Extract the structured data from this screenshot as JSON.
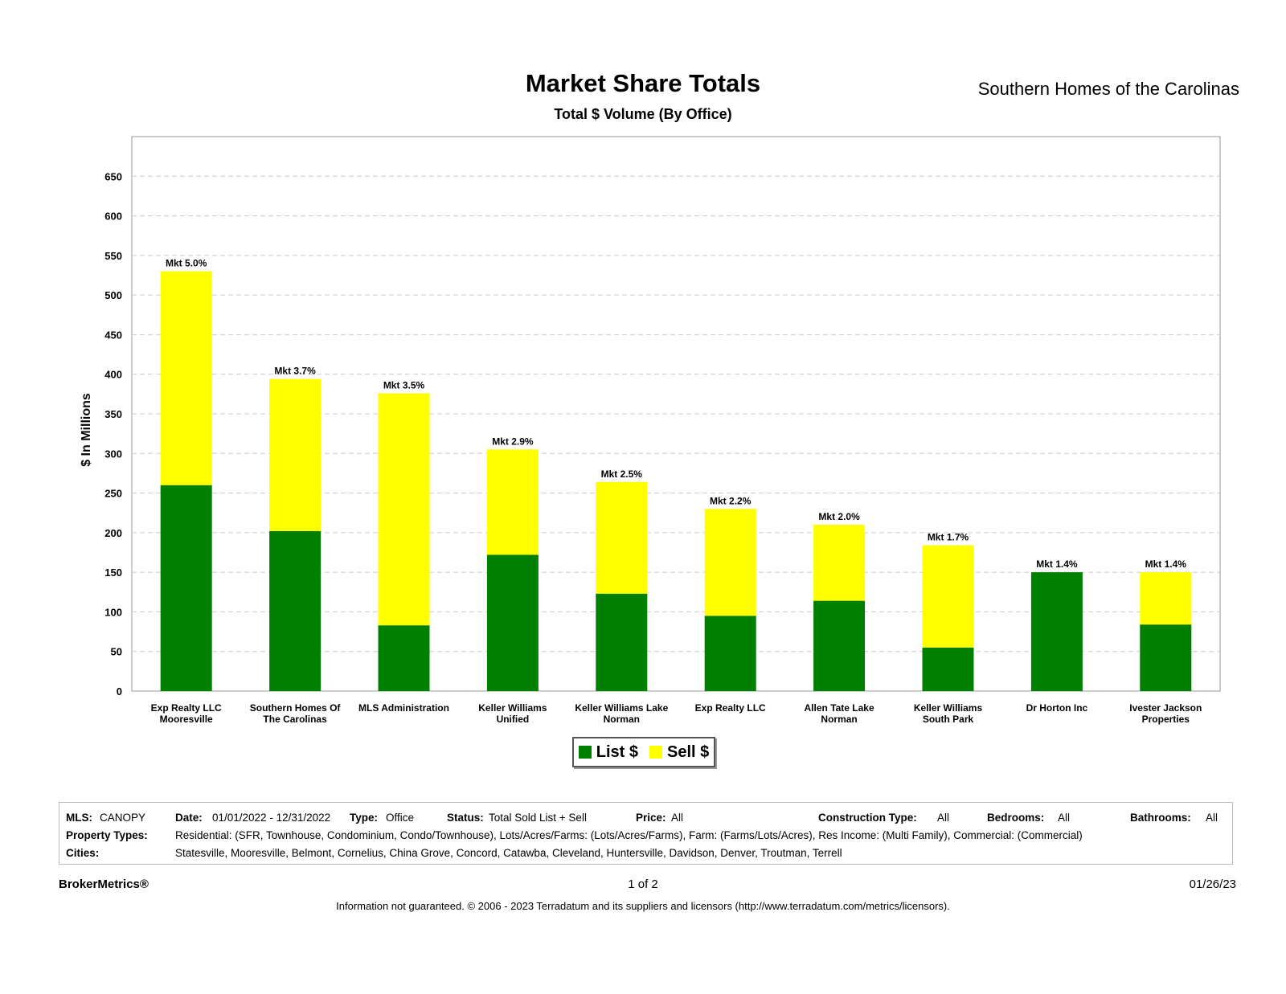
{
  "header": {
    "title": "Market Share Totals",
    "subtitle": "Total $ Volume (By Office)",
    "company": "Southern Homes of the Carolinas"
  },
  "chart_data": {
    "type": "bar",
    "stacked": true,
    "ylabel": "$ In Millions",
    "ylim": [
      0,
      700
    ],
    "yticks": [
      0,
      50,
      100,
      150,
      200,
      250,
      300,
      350,
      400,
      450,
      500,
      550,
      600,
      650
    ],
    "grid": true,
    "categories": [
      [
        "Exp Realty LLC",
        "Mooresville"
      ],
      [
        "Southern Homes Of",
        "The Carolinas"
      ],
      [
        "MLS Administration"
      ],
      [
        "Keller Williams",
        "Unified"
      ],
      [
        "Keller Williams Lake",
        "Norman"
      ],
      [
        "Exp Realty LLC"
      ],
      [
        "Allen Tate Lake",
        "Norman"
      ],
      [
        "Keller Williams",
        "South Park"
      ],
      [
        "Dr Horton Inc"
      ],
      [
        "Ivester Jackson",
        "Properties"
      ]
    ],
    "series": [
      {
        "name": "List $",
        "color": "#008000",
        "values": [
          260,
          202,
          83,
          172,
          123,
          95,
          114,
          55,
          150,
          84
        ]
      },
      {
        "name": "Sell $",
        "color": "#ffff00",
        "values": [
          270,
          192,
          293,
          133,
          141,
          135,
          96,
          129,
          0,
          66
        ]
      }
    ],
    "annotations": [
      "Mkt 5.0%",
      "Mkt 3.7%",
      "Mkt 3.5%",
      "Mkt 2.9%",
      "Mkt 2.5%",
      "Mkt 2.2%",
      "Mkt 2.0%",
      "Mkt 1.7%",
      "Mkt 1.4%",
      "Mkt 1.4%"
    ],
    "legend_position": "bottom-center"
  },
  "legend": {
    "list_label": "List $",
    "sell_label": "Sell $",
    "list_color": "#008000",
    "sell_color": "#ffff00"
  },
  "info": {
    "mls_label": "MLS:",
    "mls_value": "CANOPY",
    "date_label": "Date:",
    "date_value": "01/01/2022 - 12/31/2022",
    "type_label": "Type:",
    "type_value": "Office",
    "status_label": "Status:",
    "status_value": "Total Sold List + Sell",
    "price_label": "Price:",
    "price_value": "All",
    "construction_label": "Construction Type:",
    "construction_value": "All",
    "bedrooms_label": "Bedrooms:",
    "bedrooms_value": "All",
    "bathrooms_label": "Bathrooms:",
    "bathrooms_value": "All",
    "property_types_label": "Property Types:",
    "property_types_value": "Residential: (SFR, Townhouse, Condominium, Condo/Townhouse), Lots/Acres/Farms: (Lots/Acres/Farms), Farm: (Farms/Lots/Acres), Res Income: (Multi Family), Commercial: (Commercial)",
    "cities_label": "Cities:",
    "cities_value": "Statesville, Mooresville, Belmont, Cornelius, China Grove, Concord, Catawba, Cleveland, Huntersville, Davidson, Denver, Troutman, Terrell"
  },
  "footer": {
    "brand": "BrokerMetrics®",
    "page": "1 of 2",
    "date": "01/26/23",
    "disclaimer": "Information not guaranteed.  © 2006 - 2023 Terradatum and its suppliers and licensors (http://www.terradatum.com/metrics/licensors)."
  }
}
